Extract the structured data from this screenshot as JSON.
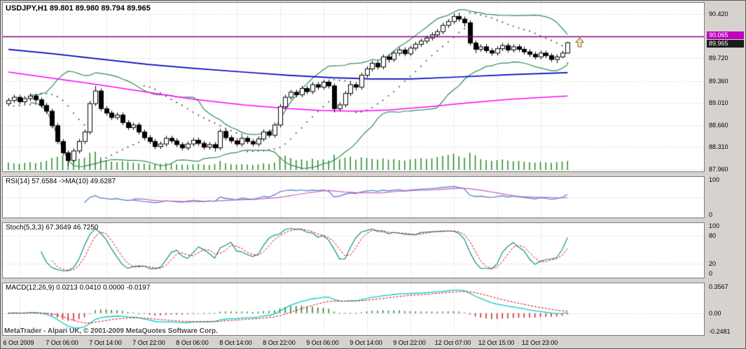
{
  "chart": {
    "title": "USDJPY,H1 89.801 89.980 89.794 89.965"
  },
  "panels": {
    "rsi_label": "RSI(14) 57.6584 ->MA(10) 49.6287",
    "stoch_label": "Stoch(5,3,3) 67.3649 46.7250",
    "macd_label": "MACD(12,26,9) 0.0213 0.0410 0.0000 -0.0197"
  },
  "axes": {
    "price_ticks": [
      "90.420",
      "89.720",
      "89.360",
      "89.010",
      "88.660",
      "88.310",
      "87.960"
    ],
    "hline_label": "90.065",
    "bid_label": "89.965",
    "rsi_ticks": [
      "100",
      "0"
    ],
    "stoch_ticks": [
      "100",
      "80",
      "20",
      "0"
    ],
    "macd_ticks": [
      "0.3567",
      "0.00",
      "-0.2481"
    ],
    "time_labels": [
      "6 Oct 2009",
      "7 Oct 06:00",
      "7 Oct 14:00",
      "7 Oct 22:00",
      "8 Oct 06:00",
      "8 Oct 14:00",
      "8 Oct 22:00",
      "9 Oct 06:00",
      "9 Oct 14:00",
      "9 Oct 22:00",
      "12 Oct 07:00",
      "12 Oct 15:00",
      "12 Oct 23:00"
    ]
  },
  "footer": {
    "copyright": "MetaTrader - Alpari UK, © 2001-2009 MetaQuotes Software Corp."
  },
  "colors": {
    "background": "#d6d3ce",
    "panel_bg": "#ffffff",
    "grid": "#c9c9c9",
    "candle": "#000000",
    "bull": "#ffffff",
    "bear": "#000000",
    "bands": "#2e8b57",
    "ma_blue": "#0000c0",
    "ma_magenta": "#ff00ff",
    "sar": "#5a5a5a",
    "volume": "#1c8c1c",
    "hline": "#800080",
    "badge_hline": "#c000c0",
    "badge_bid": "#1c1c1c",
    "rsi": "#4a74c9",
    "rsi_ma": "#c060c0",
    "stoch_k": "#0f8f8f",
    "stoch_d": "#e00000",
    "macd_main": "#00cccc",
    "macd_signal": "#e00000",
    "hist_pos": "#1e7a1e",
    "hist_neg": "#cc2222",
    "arrow": "#8a7230"
  },
  "chart_data": {
    "type": "candlestick",
    "symbol": "USDJPY",
    "timeframe": "H1",
    "last_ohlc": {
      "open": 89.801,
      "high": 89.98,
      "low": 89.794,
      "close": 89.965
    },
    "hline": 90.065,
    "price_range": {
      "top_tick": 90.42,
      "bottom_tick": 87.96
    },
    "price_ticks": [
      90.42,
      89.72,
      89.36,
      89.01,
      88.66,
      88.31,
      87.96
    ],
    "time_label_bar_index": [
      2,
      10,
      18,
      26,
      34,
      42,
      50,
      58,
      66,
      74,
      82,
      90,
      98
    ],
    "rsi_levels": [
      50
    ],
    "stoch_levels": [
      20,
      80
    ],
    "macd_scale": {
      "max": 0.3567,
      "min": -0.2481
    },
    "overlays": {
      "bollinger": {
        "period": 20,
        "deviation": 2
      },
      "parabolic_sar": {
        "step": 0.02,
        "maximum": 0.2
      },
      "ma_blue_points": [
        [
          0,
          89.86
        ],
        [
          0.08,
          89.79
        ],
        [
          0.16,
          89.71
        ],
        [
          0.25,
          89.62
        ],
        [
          0.33,
          89.56
        ],
        [
          0.42,
          89.5
        ],
        [
          0.5,
          89.45
        ],
        [
          0.58,
          89.41
        ],
        [
          0.65,
          89.39
        ],
        [
          0.72,
          89.39
        ],
        [
          0.8,
          89.42
        ],
        [
          0.9,
          89.46
        ],
        [
          1,
          89.49
        ]
      ],
      "ma_magenta_points": [
        [
          0,
          89.5
        ],
        [
          0.08,
          89.4
        ],
        [
          0.16,
          89.3
        ],
        [
          0.25,
          89.18
        ],
        [
          0.33,
          89.07
        ],
        [
          0.42,
          88.98
        ],
        [
          0.5,
          88.92
        ],
        [
          0.56,
          88.89
        ],
        [
          0.62,
          88.88
        ],
        [
          0.68,
          88.9
        ],
        [
          0.75,
          88.95
        ],
        [
          0.82,
          89.01
        ],
        [
          0.9,
          89.07
        ],
        [
          1,
          89.12
        ]
      ]
    },
    "indicators": {
      "rsi": {
        "period": 14,
        "ma_period": 10,
        "value": 57.6584,
        "ma_value": 49.6287
      },
      "stoch": {
        "k_period": 5,
        "d_period": 3,
        "slowing": 3,
        "k_value": 67.3649,
        "d_value": 46.725
      },
      "macd": {
        "fast": 12,
        "slow": 26,
        "signal": 9,
        "main_value": 0.0213,
        "signal_value": 0.041,
        "zero": 0.0,
        "osma_value": -0.0197
      }
    },
    "candles": [
      [
        89.0,
        89.09,
        88.96,
        89.05
      ],
      [
        89.05,
        89.14,
        89.01,
        89.1
      ],
      [
        89.1,
        89.14,
        88.99,
        89.03
      ],
      [
        89.03,
        89.12,
        88.99,
        89.08
      ],
      [
        89.08,
        89.16,
        89.04,
        89.12
      ],
      [
        89.12,
        89.16,
        89.02,
        89.06
      ],
      [
        89.06,
        89.1,
        88.93,
        88.97
      ],
      [
        88.97,
        89.01,
        88.84,
        88.88
      ],
      [
        88.88,
        88.92,
        88.61,
        88.65
      ],
      [
        88.65,
        88.69,
        88.36,
        88.4
      ],
      [
        88.4,
        88.44,
        88.18,
        88.22
      ],
      [
        88.22,
        88.26,
        88.02,
        88.1
      ],
      [
        88.1,
        88.29,
        88.06,
        88.25
      ],
      [
        88.25,
        88.44,
        88.21,
        88.4
      ],
      [
        88.4,
        88.59,
        88.36,
        88.55
      ],
      [
        88.55,
        89.04,
        88.51,
        89.0
      ],
      [
        89.0,
        89.28,
        88.96,
        89.2
      ],
      [
        89.2,
        89.24,
        88.88,
        88.92
      ],
      [
        88.92,
        88.96,
        88.81,
        88.85
      ],
      [
        88.85,
        88.89,
        88.74,
        88.78
      ],
      [
        88.78,
        88.86,
        88.74,
        88.82
      ],
      [
        88.82,
        88.86,
        88.66,
        88.7
      ],
      [
        88.7,
        88.74,
        88.58,
        88.62
      ],
      [
        88.62,
        88.7,
        88.58,
        88.66
      ],
      [
        88.66,
        88.7,
        88.51,
        88.55
      ],
      [
        88.55,
        88.59,
        88.42,
        88.46
      ],
      [
        88.46,
        88.5,
        88.36,
        88.4
      ],
      [
        88.4,
        88.44,
        88.28,
        88.32
      ],
      [
        88.32,
        88.4,
        88.28,
        88.36
      ],
      [
        88.36,
        88.49,
        88.32,
        88.45
      ],
      [
        88.45,
        88.49,
        88.37,
        88.41
      ],
      [
        88.41,
        88.45,
        88.31,
        88.35
      ],
      [
        88.35,
        88.39,
        88.26,
        88.3
      ],
      [
        88.3,
        88.4,
        88.26,
        88.36
      ],
      [
        88.36,
        88.46,
        88.32,
        88.42
      ],
      [
        88.42,
        88.46,
        88.33,
        88.37
      ],
      [
        88.37,
        88.41,
        88.27,
        88.31
      ],
      [
        88.31,
        88.39,
        88.27,
        88.35
      ],
      [
        88.35,
        88.39,
        88.24,
        88.3
      ],
      [
        88.3,
        88.6,
        88.26,
        88.56
      ],
      [
        88.56,
        88.6,
        88.42,
        88.46
      ],
      [
        88.46,
        88.5,
        88.37,
        88.41
      ],
      [
        88.41,
        88.45,
        88.32,
        88.36
      ],
      [
        88.36,
        88.49,
        88.32,
        88.45
      ],
      [
        88.45,
        88.49,
        88.36,
        88.4
      ],
      [
        88.4,
        88.44,
        88.32,
        88.36
      ],
      [
        88.36,
        88.48,
        88.32,
        88.44
      ],
      [
        88.44,
        88.59,
        88.4,
        88.55
      ],
      [
        88.55,
        88.59,
        88.46,
        88.5
      ],
      [
        88.5,
        88.7,
        88.46,
        88.66
      ],
      [
        88.66,
        88.99,
        88.62,
        88.95
      ],
      [
        88.95,
        89.14,
        88.91,
        89.1
      ],
      [
        89.1,
        89.22,
        89.06,
        89.18
      ],
      [
        89.18,
        89.22,
        89.1,
        89.14
      ],
      [
        89.14,
        89.28,
        89.1,
        89.24
      ],
      [
        89.24,
        89.28,
        89.15,
        89.19
      ],
      [
        89.19,
        89.34,
        89.15,
        89.3
      ],
      [
        89.3,
        89.34,
        89.22,
        89.26
      ],
      [
        89.26,
        89.38,
        89.22,
        89.34
      ],
      [
        89.34,
        89.38,
        89.24,
        89.28
      ],
      [
        89.28,
        89.32,
        88.86,
        88.92
      ],
      [
        88.92,
        89.02,
        88.88,
        88.98
      ],
      [
        88.98,
        89.2,
        88.94,
        89.16
      ],
      [
        89.16,
        89.34,
        89.12,
        89.3
      ],
      [
        89.3,
        89.34,
        89.21,
        89.26
      ],
      [
        89.26,
        89.49,
        89.22,
        89.45
      ],
      [
        89.45,
        89.59,
        89.41,
        89.55
      ],
      [
        89.55,
        89.68,
        89.51,
        89.64
      ],
      [
        89.64,
        89.68,
        89.54,
        89.58
      ],
      [
        89.58,
        89.78,
        89.54,
        89.74
      ],
      [
        89.74,
        89.78,
        89.65,
        89.7
      ],
      [
        89.7,
        89.84,
        89.66,
        89.8
      ],
      [
        89.8,
        89.89,
        89.76,
        89.85
      ],
      [
        89.85,
        89.89,
        89.75,
        89.79
      ],
      [
        89.79,
        89.92,
        89.75,
        89.88
      ],
      [
        89.88,
        89.98,
        89.84,
        89.94
      ],
      [
        89.94,
        90.03,
        89.9,
        89.99
      ],
      [
        89.99,
        90.08,
        89.95,
        90.04
      ],
      [
        90.04,
        90.13,
        90.0,
        90.09
      ],
      [
        90.09,
        90.18,
        90.05,
        90.14
      ],
      [
        90.14,
        90.28,
        90.1,
        90.24
      ],
      [
        90.24,
        90.34,
        90.2,
        90.3
      ],
      [
        90.3,
        90.43,
        90.26,
        90.38
      ],
      [
        90.38,
        90.44,
        90.3,
        90.34
      ],
      [
        90.34,
        90.38,
        90.22,
        90.28
      ],
      [
        90.28,
        90.32,
        89.92,
        89.96
      ],
      [
        89.96,
        90.0,
        89.8,
        89.86
      ],
      [
        89.86,
        89.94,
        89.82,
        89.9
      ],
      [
        89.9,
        89.94,
        89.8,
        89.84
      ],
      [
        89.84,
        89.88,
        89.76,
        89.8
      ],
      [
        89.8,
        89.91,
        89.76,
        89.87
      ],
      [
        89.87,
        89.96,
        89.83,
        89.92
      ],
      [
        89.92,
        89.96,
        89.81,
        89.85
      ],
      [
        89.85,
        89.94,
        89.81,
        89.9
      ],
      [
        89.9,
        89.94,
        89.82,
        89.86
      ],
      [
        89.86,
        89.9,
        89.78,
        89.82
      ],
      [
        89.82,
        89.86,
        89.74,
        89.78
      ],
      [
        89.78,
        89.82,
        89.7,
        89.74
      ],
      [
        89.74,
        89.84,
        89.7,
        89.8
      ],
      [
        89.8,
        89.84,
        89.72,
        89.76
      ],
      [
        89.76,
        89.8,
        89.66,
        89.7
      ],
      [
        89.7,
        89.78,
        89.64,
        89.74
      ],
      [
        89.74,
        89.84,
        89.72,
        89.8
      ],
      [
        89.801,
        89.98,
        89.794,
        89.965
      ]
    ],
    "volume": [
      420,
      380,
      350,
      400,
      450,
      390,
      460,
      520,
      680,
      750,
      820,
      900,
      760,
      640,
      700,
      980,
      1040,
      720,
      560,
      480,
      440,
      500,
      460,
      420,
      380,
      360,
      340,
      320,
      350,
      400,
      370,
      330,
      310,
      300,
      320,
      340,
      310,
      290,
      330,
      520,
      380,
      340,
      300,
      330,
      310,
      290,
      320,
      380,
      350,
      430,
      780,
      820,
      680,
      560,
      600,
      520,
      640,
      560,
      600,
      540,
      880,
      620,
      700,
      760,
      580,
      720,
      680,
      640,
      600,
      660,
      580,
      620,
      560,
      540,
      600,
      640,
      680,
      620,
      660,
      740,
      800,
      860,
      920,
      780,
      700,
      980,
      840,
      620,
      560,
      520,
      560,
      600,
      540,
      500,
      520,
      480,
      440,
      420,
      460,
      430,
      410,
      450,
      480,
      520
    ]
  }
}
